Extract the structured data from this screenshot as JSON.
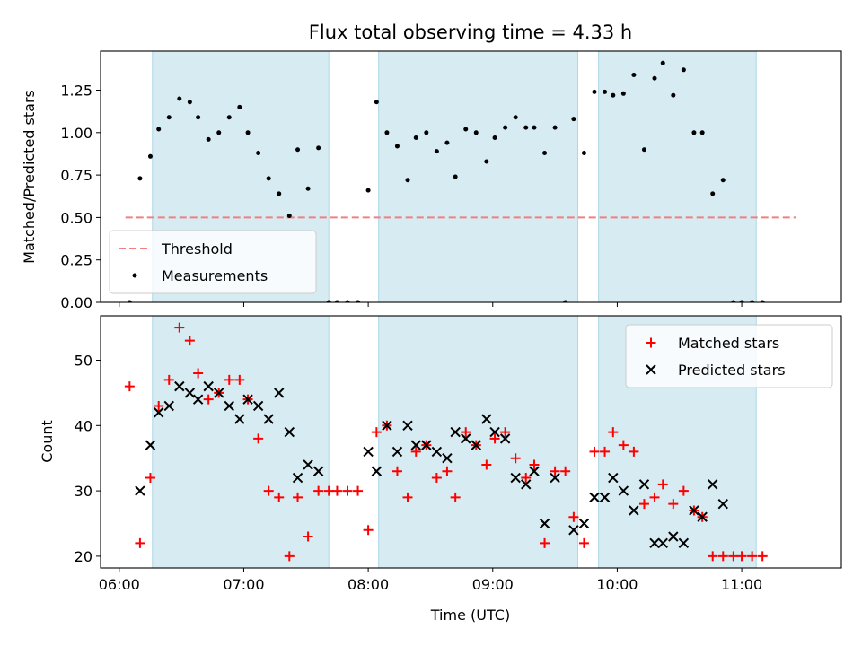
{
  "chart_data": [
    {
      "type": "scatter",
      "title": "Flux total observing time = 4.33 h",
      "xlabel": "",
      "ylabel": "Matched/Predicted stars",
      "ylim": [
        0,
        1.48
      ],
      "xlim": [
        "05:51",
        "11:48"
      ],
      "x_ticks": [
        "06:00",
        "07:00",
        "08:00",
        "09:00",
        "10:00",
        "11:00"
      ],
      "y_ticks": [
        "0.00",
        "0.25",
        "0.50",
        "0.75",
        "1.00",
        "1.25"
      ],
      "shaded_intervals": [
        [
          "06:16",
          "07:41"
        ],
        [
          "08:05",
          "09:41"
        ],
        [
          "09:51",
          "11:07"
        ]
      ],
      "legend_position": "lower-left",
      "series": [
        {
          "name": "Threshold",
          "style": "dashed-line",
          "color": "#f08080",
          "points": [
            [
              "06:03",
              0.5
            ],
            [
              "11:26",
              0.5
            ]
          ]
        },
        {
          "name": "Measurements",
          "style": "dot",
          "color": "#000000",
          "points": [
            [
              "06:05",
              0.0
            ],
            [
              "06:10",
              0.73
            ],
            [
              "06:15",
              0.86
            ],
            [
              "06:19",
              1.02
            ],
            [
              "06:24",
              1.09
            ],
            [
              "06:29",
              1.2
            ],
            [
              "06:34",
              1.18
            ],
            [
              "06:38",
              1.09
            ],
            [
              "06:43",
              0.96
            ],
            [
              "06:48",
              1.0
            ],
            [
              "06:53",
              1.09
            ],
            [
              "06:58",
              1.15
            ],
            [
              "07:02",
              1.0
            ],
            [
              "07:07",
              0.88
            ],
            [
              "07:12",
              0.73
            ],
            [
              "07:17",
              0.64
            ],
            [
              "07:22",
              0.51
            ],
            [
              "07:26",
              0.9
            ],
            [
              "07:31",
              0.67
            ],
            [
              "07:36",
              0.91
            ],
            [
              "07:41",
              0.0
            ],
            [
              "07:45",
              0.0
            ],
            [
              "07:50",
              0.0
            ],
            [
              "07:55",
              0.0
            ],
            [
              "08:00",
              0.66
            ],
            [
              "08:04",
              1.18
            ],
            [
              "08:09",
              1.0
            ],
            [
              "08:14",
              0.92
            ],
            [
              "08:19",
              0.72
            ],
            [
              "08:23",
              0.97
            ],
            [
              "08:28",
              1.0
            ],
            [
              "08:33",
              0.89
            ],
            [
              "08:38",
              0.94
            ],
            [
              "08:42",
              0.74
            ],
            [
              "08:47",
              1.02
            ],
            [
              "08:52",
              1.0
            ],
            [
              "08:57",
              0.83
            ],
            [
              "09:01",
              0.97
            ],
            [
              "09:06",
              1.03
            ],
            [
              "09:11",
              1.09
            ],
            [
              "09:16",
              1.03
            ],
            [
              "09:20",
              1.03
            ],
            [
              "09:25",
              0.88
            ],
            [
              "09:30",
              1.03
            ],
            [
              "09:35",
              0.0
            ],
            [
              "09:39",
              1.08
            ],
            [
              "09:44",
              0.88
            ],
            [
              "09:49",
              1.24
            ],
            [
              "09:54",
              1.24
            ],
            [
              "09:58",
              1.22
            ],
            [
              "10:03",
              1.23
            ],
            [
              "10:08",
              1.34
            ],
            [
              "10:13",
              0.9
            ],
            [
              "10:18",
              1.32
            ],
            [
              "10:22",
              1.41
            ],
            [
              "10:27",
              1.22
            ],
            [
              "10:32",
              1.37
            ],
            [
              "10:37",
              1.0
            ],
            [
              "10:41",
              1.0
            ],
            [
              "10:46",
              0.64
            ],
            [
              "10:51",
              0.72
            ],
            [
              "10:56",
              0.0
            ],
            [
              "11:00",
              0.0
            ],
            [
              "11:05",
              0.0
            ],
            [
              "11:10",
              0.0
            ]
          ]
        }
      ]
    },
    {
      "type": "scatter",
      "title": "",
      "xlabel": "Time (UTC)",
      "ylabel": "Count",
      "ylim": [
        18.2,
        56.8
      ],
      "xlim": [
        "05:51",
        "11:48"
      ],
      "x_ticks": [
        "06:00",
        "07:00",
        "08:00",
        "09:00",
        "10:00",
        "11:00"
      ],
      "y_ticks": [
        "20",
        "30",
        "40",
        "50"
      ],
      "shaded_intervals": [
        [
          "06:16",
          "07:41"
        ],
        [
          "08:05",
          "09:41"
        ],
        [
          "09:51",
          "11:07"
        ]
      ],
      "legend_position": "upper-right",
      "series": [
        {
          "name": "Matched stars",
          "style": "plus",
          "color": "#ff0000",
          "points": [
            [
              "06:05",
              46
            ],
            [
              "06:10",
              22
            ],
            [
              "06:15",
              32
            ],
            [
              "06:19",
              43
            ],
            [
              "06:24",
              47
            ],
            [
              "06:29",
              55
            ],
            [
              "06:34",
              53
            ],
            [
              "06:38",
              48
            ],
            [
              "06:43",
              44
            ],
            [
              "06:48",
              45
            ],
            [
              "06:53",
              47
            ],
            [
              "06:58",
              47
            ],
            [
              "07:02",
              44
            ],
            [
              "07:07",
              38
            ],
            [
              "07:12",
              30
            ],
            [
              "07:17",
              29
            ],
            [
              "07:22",
              20
            ],
            [
              "07:26",
              29
            ],
            [
              "07:31",
              23
            ],
            [
              "07:36",
              30
            ],
            [
              "07:41",
              30
            ],
            [
              "07:45",
              30
            ],
            [
              "07:50",
              30
            ],
            [
              "07:55",
              30
            ],
            [
              "08:00",
              24
            ],
            [
              "08:04",
              39
            ],
            [
              "08:09",
              40
            ],
            [
              "08:14",
              33
            ],
            [
              "08:19",
              29
            ],
            [
              "08:23",
              36
            ],
            [
              "08:28",
              37
            ],
            [
              "08:33",
              32
            ],
            [
              "08:38",
              33
            ],
            [
              "08:42",
              29
            ],
            [
              "08:47",
              39
            ],
            [
              "08:52",
              37
            ],
            [
              "08:57",
              34
            ],
            [
              "09:01",
              38
            ],
            [
              "09:06",
              39
            ],
            [
              "09:11",
              35
            ],
            [
              "09:16",
              32
            ],
            [
              "09:20",
              34
            ],
            [
              "09:25",
              22
            ],
            [
              "09:30",
              33
            ],
            [
              "09:35",
              33
            ],
            [
              "09:39",
              26
            ],
            [
              "09:44",
              22
            ],
            [
              "09:49",
              36
            ],
            [
              "09:54",
              36
            ],
            [
              "09:58",
              39
            ],
            [
              "10:03",
              37
            ],
            [
              "10:08",
              36
            ],
            [
              "10:13",
              28
            ],
            [
              "10:18",
              29
            ],
            [
              "10:22",
              31
            ],
            [
              "10:27",
              28
            ],
            [
              "10:32",
              30
            ],
            [
              "10:37",
              27
            ],
            [
              "10:41",
              26
            ],
            [
              "10:46",
              20
            ],
            [
              "10:51",
              20
            ],
            [
              "10:56",
              20
            ],
            [
              "11:00",
              20
            ],
            [
              "11:05",
              20
            ],
            [
              "11:10",
              20
            ]
          ]
        },
        {
          "name": "Predicted stars",
          "style": "x",
          "color": "#000000",
          "points": [
            [
              "06:10",
              30
            ],
            [
              "06:15",
              37
            ],
            [
              "06:19",
              42
            ],
            [
              "06:24",
              43
            ],
            [
              "06:29",
              46
            ],
            [
              "06:34",
              45
            ],
            [
              "06:38",
              44
            ],
            [
              "06:43",
              46
            ],
            [
              "06:48",
              45
            ],
            [
              "06:53",
              43
            ],
            [
              "06:58",
              41
            ],
            [
              "07:02",
              44
            ],
            [
              "07:07",
              43
            ],
            [
              "07:12",
              41
            ],
            [
              "07:17",
              45
            ],
            [
              "07:22",
              39
            ],
            [
              "07:26",
              32
            ],
            [
              "07:31",
              34
            ],
            [
              "07:36",
              33
            ],
            [
              "08:00",
              36
            ],
            [
              "08:04",
              33
            ],
            [
              "08:09",
              40
            ],
            [
              "08:14",
              36
            ],
            [
              "08:19",
              40
            ],
            [
              "08:23",
              37
            ],
            [
              "08:28",
              37
            ],
            [
              "08:33",
              36
            ],
            [
              "08:38",
              35
            ],
            [
              "08:42",
              39
            ],
            [
              "08:47",
              38
            ],
            [
              "08:52",
              37
            ],
            [
              "08:57",
              41
            ],
            [
              "09:01",
              39
            ],
            [
              "09:06",
              38
            ],
            [
              "09:11",
              32
            ],
            [
              "09:16",
              31
            ],
            [
              "09:20",
              33
            ],
            [
              "09:25",
              25
            ],
            [
              "09:30",
              32
            ],
            [
              "09:39",
              24
            ],
            [
              "09:44",
              25
            ],
            [
              "09:49",
              29
            ],
            [
              "09:54",
              29
            ],
            [
              "09:58",
              32
            ],
            [
              "10:03",
              30
            ],
            [
              "10:08",
              27
            ],
            [
              "10:13",
              31
            ],
            [
              "10:18",
              22
            ],
            [
              "10:22",
              22
            ],
            [
              "10:27",
              23
            ],
            [
              "10:32",
              22
            ],
            [
              "10:37",
              27
            ],
            [
              "10:41",
              26
            ],
            [
              "10:46",
              31
            ],
            [
              "10:51",
              28
            ]
          ]
        }
      ]
    }
  ]
}
